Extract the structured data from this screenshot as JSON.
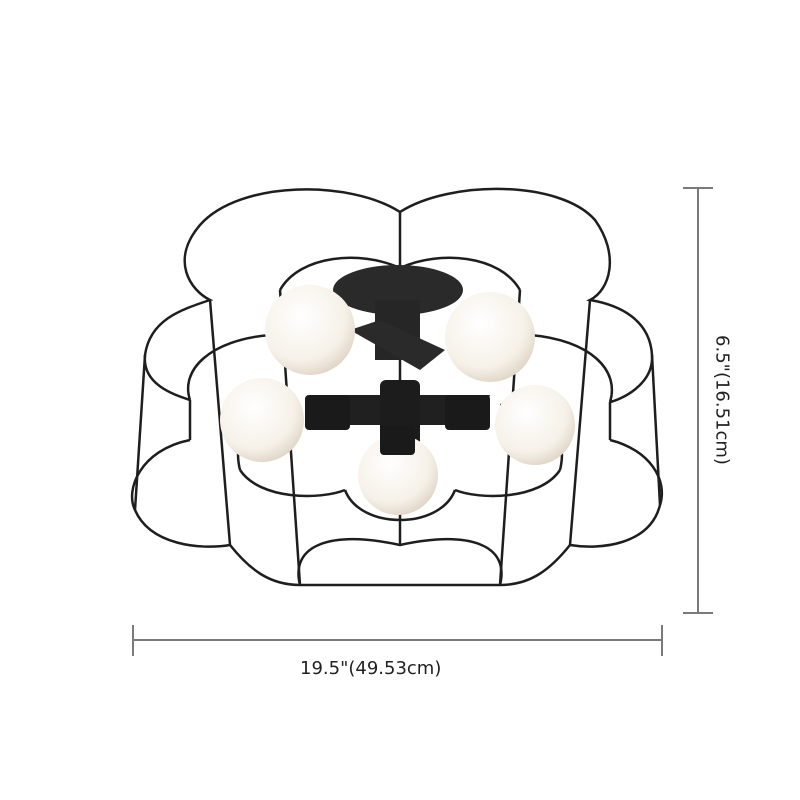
{
  "dimensions": {
    "width_label": "19.5\"(49.53cm)",
    "height_label": "6.5\"(16.51cm)"
  },
  "colors": {
    "wire": "#1e1e1e",
    "dimension_line": "#7a7a7a",
    "bulb": "#fbf8f2"
  },
  "product": {
    "type": "flower-shaped wire cage semi-flush ceiling light",
    "bulb_count": 5
  }
}
